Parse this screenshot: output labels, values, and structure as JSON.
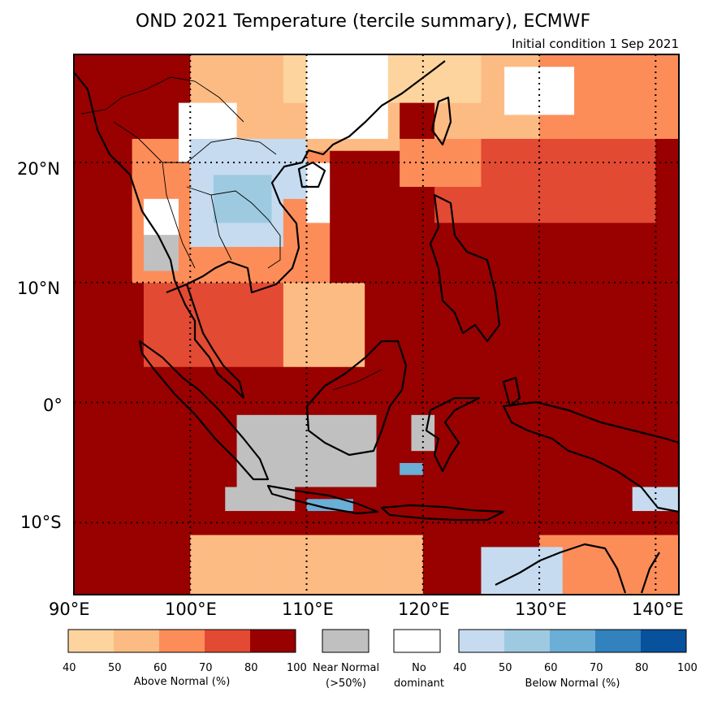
{
  "title": "OND 2021 Temperature (tercile summary), ECMWF",
  "subtitle": "Initial condition 1 Sep 2021",
  "map": {
    "lon_range": [
      90,
      142
    ],
    "lat_range": [
      -16,
      29
    ],
    "lon_ticks": [
      "90°E",
      "100°E",
      "110°E",
      "120°E",
      "130°E",
      "140°E"
    ],
    "lat_ticks": [
      "20°N",
      "10°N",
      "0°",
      "10°S"
    ],
    "colors": {
      "above_40_50": "#fdd49e",
      "above_50_60": "#fdbb84",
      "above_60_70": "#fc8d59",
      "above_70_80": "#e34a33",
      "above_80_100": "#990000",
      "near_normal": "#c0c0c0",
      "no_dominant": "#ffffff",
      "below_40_50": "#c6dbef",
      "below_50_60": "#9ecae1",
      "below_60_70": "#6baed6",
      "below_70_80": "#3182bd",
      "below_80_100": "#08519c"
    }
  },
  "legend": {
    "above": {
      "label": "Above Normal (%)",
      "ticks": [
        "40",
        "50",
        "60",
        "70",
        "80",
        "100"
      ]
    },
    "near": {
      "label_line1": "Near Normal",
      "label_line2": "(>50%)"
    },
    "nodom": {
      "label_line1": "No",
      "label_line2": "dominant"
    },
    "below": {
      "label": "Below Normal (%)",
      "ticks": [
        "40",
        "50",
        "60",
        "70",
        "80",
        "100"
      ]
    }
  }
}
